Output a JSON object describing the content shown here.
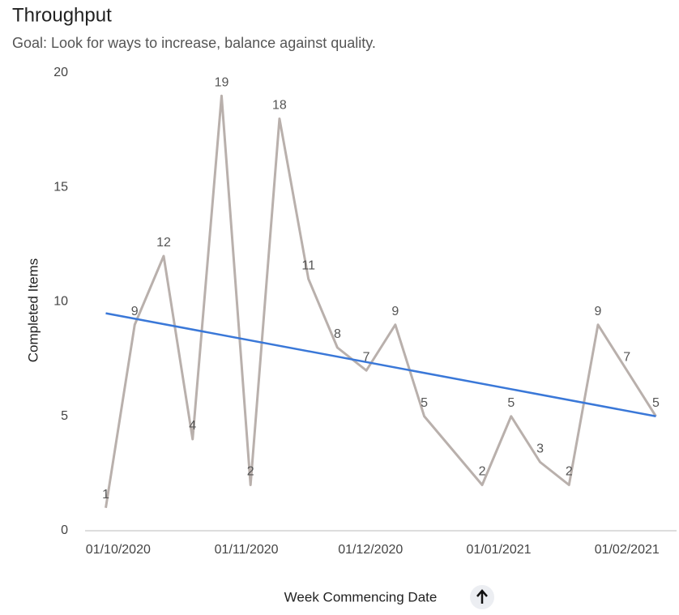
{
  "chart_data": {
    "type": "line",
    "title": "Throughput",
    "subtitle": "Goal: Look for ways to increase, balance against quality.",
    "x_label": "Week Commencing Date",
    "y_label": "Completed Items",
    "x": [
      "28/09/2020",
      "05/10/2020",
      "12/10/2020",
      "19/10/2020",
      "26/10/2020",
      "02/11/2020",
      "09/11/2020",
      "16/11/2020",
      "23/11/2020",
      "30/11/2020",
      "07/12/2020",
      "14/12/2020",
      "28/12/2020",
      "04/01/2021",
      "11/01/2021",
      "18/01/2021",
      "25/01/2021",
      "01/02/2021",
      "08/02/2021"
    ],
    "series": [
      {
        "color": "#b9b0ac",
        "values": [
          1,
          9,
          12,
          4,
          19,
          2,
          18,
          11,
          8,
          7,
          9,
          5,
          2,
          5,
          3,
          2,
          9,
          7,
          5
        ]
      }
    ],
    "trend": {
      "color": "#3a78d8",
      "start": 9.5,
      "end": 5
    },
    "xlim": [
      "23/09/2020",
      "13/02/2021"
    ],
    "xticks": [
      "01/10/2020",
      "01/11/2020",
      "01/12/2020",
      "01/01/2021",
      "01/02/2021"
    ],
    "ylim": [
      0,
      20
    ],
    "yticks": [
      0,
      5,
      10,
      15,
      20
    ]
  }
}
